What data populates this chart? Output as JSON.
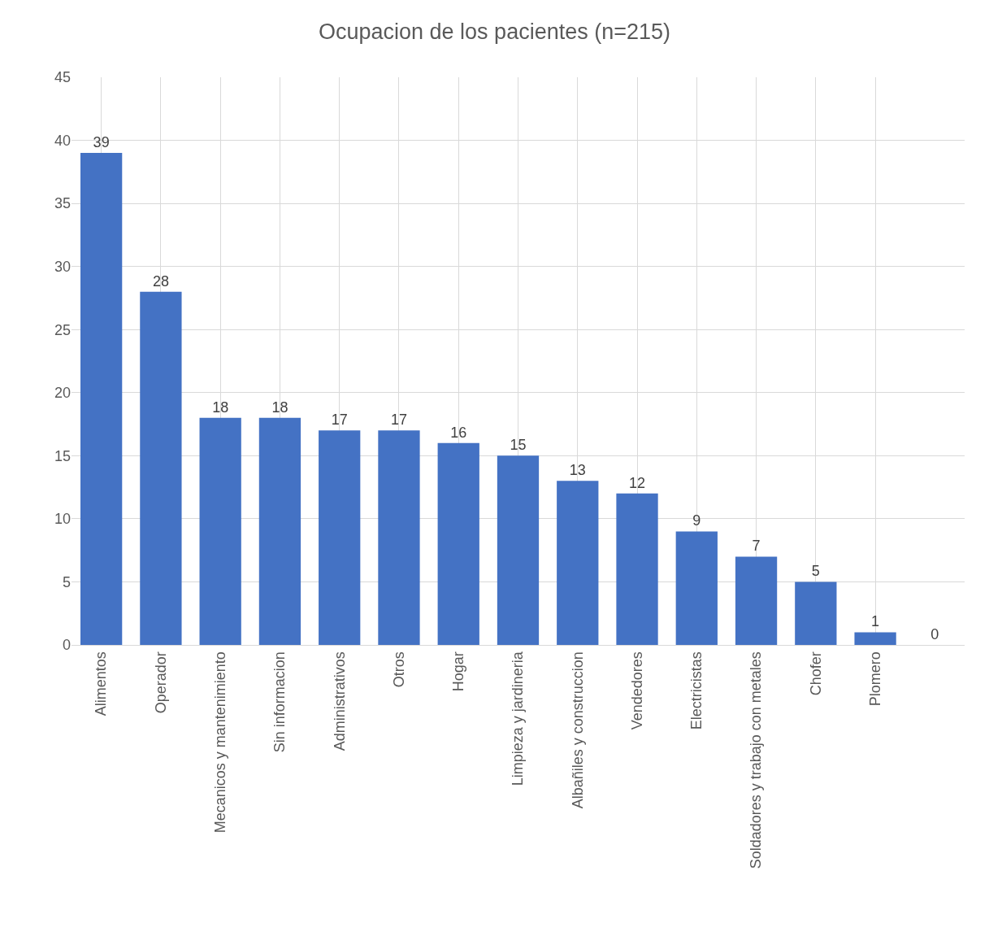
{
  "chart_data": {
    "type": "bar",
    "title": "Ocupacion de los pacientes (n=215)",
    "categories": [
      "Alimentos",
      "Operador",
      "Mecanicos y mantenimiento",
      "Sin informacion",
      "Administrativos",
      "Otros",
      "Hogar",
      "Limpieza y jardineria",
      "Albañiles y construccion",
      "Vendedores",
      "Electricistas",
      "Soldadores y trabajo con metales",
      "Chofer",
      "Plomero",
      null
    ],
    "values": [
      39,
      28,
      18,
      18,
      17,
      17,
      16,
      15,
      13,
      12,
      9,
      7,
      5,
      1,
      0
    ],
    "color": "#4472c4",
    "ylim": [
      0,
      45
    ],
    "yticks": [
      0,
      5,
      10,
      15,
      20,
      25,
      30,
      35,
      40,
      45
    ],
    "grid": true,
    "data_labels": true,
    "legend": false
  }
}
